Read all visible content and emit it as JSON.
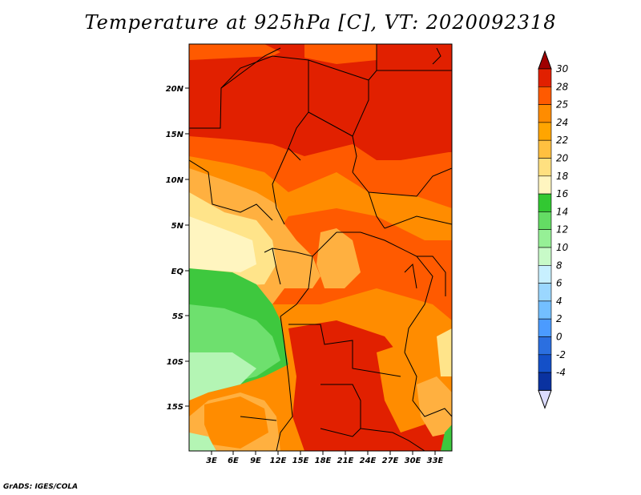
{
  "title": "Temperature at 925hPa [C], VT: 2020092318",
  "footer": "GrADS: IGES/COLA",
  "map": {
    "lat_labels": [
      "20N",
      "15N",
      "10N",
      "5N",
      "EQ",
      "5S",
      "10S",
      "15S"
    ],
    "lon_labels": [
      "3E",
      "6E",
      "9E",
      "12E",
      "15E",
      "18E",
      "21E",
      "24E",
      "27E",
      "30E",
      "33E"
    ]
  },
  "colorbar": {
    "labels": [
      "30",
      "28",
      "25",
      "24",
      "22",
      "20",
      "18",
      "16",
      "14",
      "12",
      "10",
      "8",
      "6",
      "4",
      "2",
      "0",
      "-2",
      "-4"
    ],
    "colors": [
      "#a00000",
      "#e12000",
      "#ff5a00",
      "#ff8c00",
      "#ffa500",
      "#ffc040",
      "#ffe080",
      "#fff5c0",
      "#32c832",
      "#64dc64",
      "#96f096",
      "#c8fac8",
      "#c8f0ff",
      "#9bd7ff",
      "#73bfff",
      "#4b9bff",
      "#2b6fe0",
      "#1450c8",
      "#0a32a0",
      "#dcdcff"
    ]
  },
  "colors": {
    "very_hot": "#dd1f00",
    "hot": "#ee4d00",
    "warm": "#ff7f00",
    "mild": "#ffb040",
    "cool_warm": "#ffe48a",
    "pale": "#fff5c0",
    "green": "#3ec83e",
    "light_green": "#6ee06e",
    "pale_green": "#b4f5b4"
  }
}
